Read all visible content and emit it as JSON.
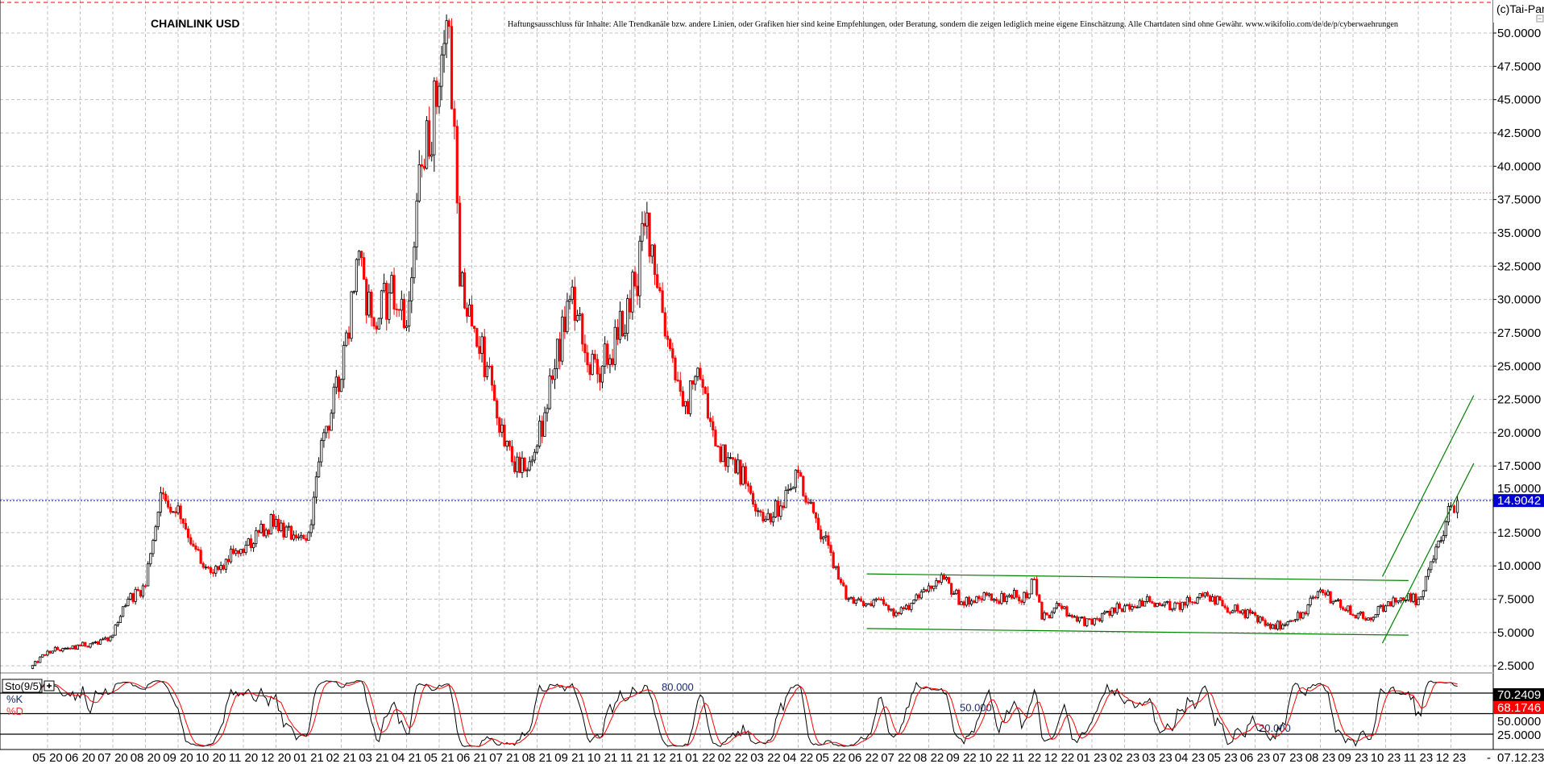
{
  "header": {
    "title": "CHAINLINK USD",
    "disclaimer": "Haftungsausschluss für Inhalte: Alle Trendkanäle bzw. andere Linien, oder Grafiken hier sind keine Empfehlungen, oder Beratung, sondern die zeigen lediglich meine eigene Einschätzung. Alle Chartdaten sind ohne Gewähr.  www.wikifolio.com/de/de/p/cyberwaehrungen",
    "copyright": "(c)Tai-Pan",
    "collapse_symbol": "−"
  },
  "colors": {
    "bull_candle": "#000000",
    "bear_candle": "#ff0000",
    "trend_lines": "#008000",
    "current_price_line": "#0000c0",
    "resistance_line": "#ff0000",
    "k_line": "#000000",
    "d_line": "#ff0000",
    "grid": "#c0c0c0"
  },
  "chart_data": [
    {
      "type": "candlestick",
      "title": "CHAINLINK USD",
      "ylim": [
        0,
        52.5
      ],
      "grid": true,
      "y_ticks": [
        "50.0000",
        "47.5000",
        "45.0000",
        "42.5000",
        "40.0000",
        "37.5000",
        "35.0000",
        "32.5000",
        "30.0000",
        "27.5000",
        "25.0000",
        "22.5000",
        "20.0000",
        "17.5000",
        "15.0000",
        "12.5000",
        "10.0000",
        "7.5000",
        "5.0000",
        "2.5000"
      ],
      "x_ticks": [
        "05 20",
        "06 20",
        "07 20",
        "08 20",
        "09 20",
        "10 20",
        "11 20",
        "12 20",
        "01 21",
        "02 21",
        "03 21",
        "04 21",
        "05 21",
        "06 21",
        "07 21",
        "08 21",
        "09 21",
        "10 21",
        "11 21",
        "12 21",
        "01 22",
        "02 22",
        "03 22",
        "04 22",
        "05 22",
        "06 22",
        "07 22",
        "08 22",
        "09 22",
        "10 22",
        "11 22",
        "12 22",
        "01 23",
        "02 23",
        "03 23",
        "04 23",
        "05 23",
        "06 23",
        "07 23",
        "08 23",
        "09 23",
        "10 23",
        "11 23",
        "12 23"
      ],
      "last_date_label": "07.12.23",
      "axis_dash": "-",
      "current_price": 14.9042,
      "current_price_label": "14.9042",
      "resistance_level": 38.0,
      "resistance_from": "2021-11-04",
      "close_series": {
        "dates": [
          "2020-04-15",
          "2020-05-01",
          "2020-05-15",
          "2020-06-01",
          "2020-06-15",
          "2020-07-01",
          "2020-07-15",
          "2020-08-01",
          "2020-08-15",
          "2020-09-01",
          "2020-09-15",
          "2020-10-01",
          "2020-10-15",
          "2020-11-01",
          "2020-11-15",
          "2020-12-01",
          "2020-12-15",
          "2021-01-01",
          "2021-01-15",
          "2021-02-01",
          "2021-02-15",
          "2021-03-01",
          "2021-03-15",
          "2021-04-01",
          "2021-04-15",
          "2021-05-01",
          "2021-05-10",
          "2021-05-20",
          "2021-06-01",
          "2021-06-15",
          "2021-07-01",
          "2021-07-15",
          "2021-08-01",
          "2021-08-15",
          "2021-09-01",
          "2021-09-15",
          "2021-10-01",
          "2021-10-15",
          "2021-11-01",
          "2021-11-12",
          "2021-12-01",
          "2021-12-15",
          "2022-01-01",
          "2022-01-15",
          "2022-02-01",
          "2022-02-15",
          "2022-03-01",
          "2022-03-15",
          "2022-04-01",
          "2022-04-15",
          "2022-05-01",
          "2022-05-15",
          "2022-06-01",
          "2022-06-15",
          "2022-07-01",
          "2022-07-15",
          "2022-08-01",
          "2022-08-15",
          "2022-09-01",
          "2022-09-15",
          "2022-10-01",
          "2022-10-15",
          "2022-11-01",
          "2022-11-08",
          "2022-11-15",
          "2022-12-01",
          "2022-12-15",
          "2023-01-01",
          "2023-01-15",
          "2023-02-01",
          "2023-02-15",
          "2023-03-01",
          "2023-03-15",
          "2023-04-01",
          "2023-04-15",
          "2023-05-01",
          "2023-05-15",
          "2023-06-01",
          "2023-06-15",
          "2023-07-01",
          "2023-07-15",
          "2023-08-01",
          "2023-08-15",
          "2023-09-01",
          "2023-09-15",
          "2023-10-01",
          "2023-10-15",
          "2023-11-01",
          "2023-11-15",
          "2023-12-01",
          "2023-12-07"
        ],
        "close": [
          2.3,
          3.6,
          3.8,
          4.0,
          4.3,
          4.8,
          7.5,
          8.5,
          15.5,
          14.5,
          11.5,
          9.5,
          10.5,
          11.0,
          12.5,
          13.5,
          12.0,
          12.5,
          20.0,
          24.0,
          33.0,
          28.0,
          30.5,
          28.0,
          40.0,
          46.0,
          50.5,
          31.0,
          28.0,
          25.0,
          19.0,
          17.0,
          19.0,
          24.0,
          30.0,
          26.0,
          25.0,
          27.0,
          31.0,
          36.5,
          27.0,
          22.0,
          24.0,
          19.0,
          18.0,
          16.0,
          13.5,
          14.5,
          17.0,
          14.0,
          11.0,
          7.5,
          7.0,
          7.5,
          6.5,
          7.2,
          8.5,
          9.0,
          7.3,
          7.7,
          7.5,
          7.8,
          7.6,
          9.0,
          6.0,
          7.0,
          6.2,
          5.6,
          6.6,
          7.0,
          7.4,
          7.2,
          6.8,
          7.3,
          8.0,
          7.0,
          6.6,
          6.3,
          5.3,
          5.8,
          6.5,
          8.2,
          7.4,
          6.3,
          6.1,
          7.0,
          7.6,
          7.5,
          10.5,
          14.5,
          14.9
        ]
      },
      "trend_lines": [
        {
          "from": [
            "2022-06-04",
            9.4
          ],
          "to": [
            "2023-10-22",
            8.9
          ]
        },
        {
          "from": [
            "2022-06-04",
            5.3
          ],
          "to": [
            "2023-10-22",
            4.8
          ]
        },
        {
          "from": [
            "2023-09-28",
            9.2
          ],
          "to": [
            "2023-12-22",
            22.8
          ]
        },
        {
          "from": [
            "2023-09-28",
            4.2
          ],
          "to": [
            "2023-12-22",
            17.7
          ]
        }
      ]
    },
    {
      "type": "line",
      "indicator": "Sto(9/5)",
      "series": [
        {
          "name": "%K"
        },
        {
          "name": "%D"
        }
      ],
      "ylim": [
        0,
        100
      ],
      "levels": [
        80,
        50,
        20
      ],
      "level_labels": [
        "80.000",
        "50.000",
        "20.000"
      ],
      "right_labels": [
        "50.0000",
        "25.0000"
      ],
      "k_last": 70.2409,
      "k_last_label": "70.2409",
      "d_last": 68.1746,
      "d_last_label": "68.1746"
    }
  ]
}
